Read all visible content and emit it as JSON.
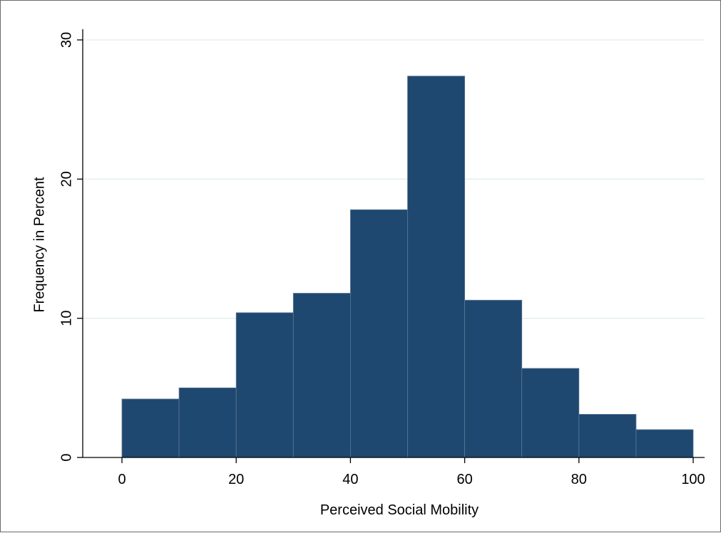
{
  "chart_data": {
    "type": "bar",
    "title": "",
    "xlabel": "Perceived Social Mobility",
    "ylabel": "Frequency in Percent",
    "bins": [
      {
        "start": 0,
        "end": 10,
        "value": 4.2
      },
      {
        "start": 10,
        "end": 20,
        "value": 5.0
      },
      {
        "start": 20,
        "end": 30,
        "value": 10.4
      },
      {
        "start": 30,
        "end": 40,
        "value": 11.8
      },
      {
        "start": 40,
        "end": 50,
        "value": 17.8
      },
      {
        "start": 50,
        "end": 60,
        "value": 27.4
      },
      {
        "start": 60,
        "end": 70,
        "value": 11.3
      },
      {
        "start": 70,
        "end": 80,
        "value": 6.4
      },
      {
        "start": 80,
        "end": 90,
        "value": 3.1
      },
      {
        "start": 90,
        "end": 100,
        "value": 2.0
      }
    ],
    "xlim": [
      0,
      100
    ],
    "ylim": [
      0,
      30
    ],
    "xticks": [
      "0",
      "20",
      "40",
      "60",
      "80",
      "100"
    ],
    "yticks": [
      "0",
      "10",
      "20",
      "30"
    ],
    "grid": true,
    "colors": {
      "bar": "#1f4870",
      "bar_edge": "#5a7896",
      "grid": "#e2ecee"
    }
  }
}
